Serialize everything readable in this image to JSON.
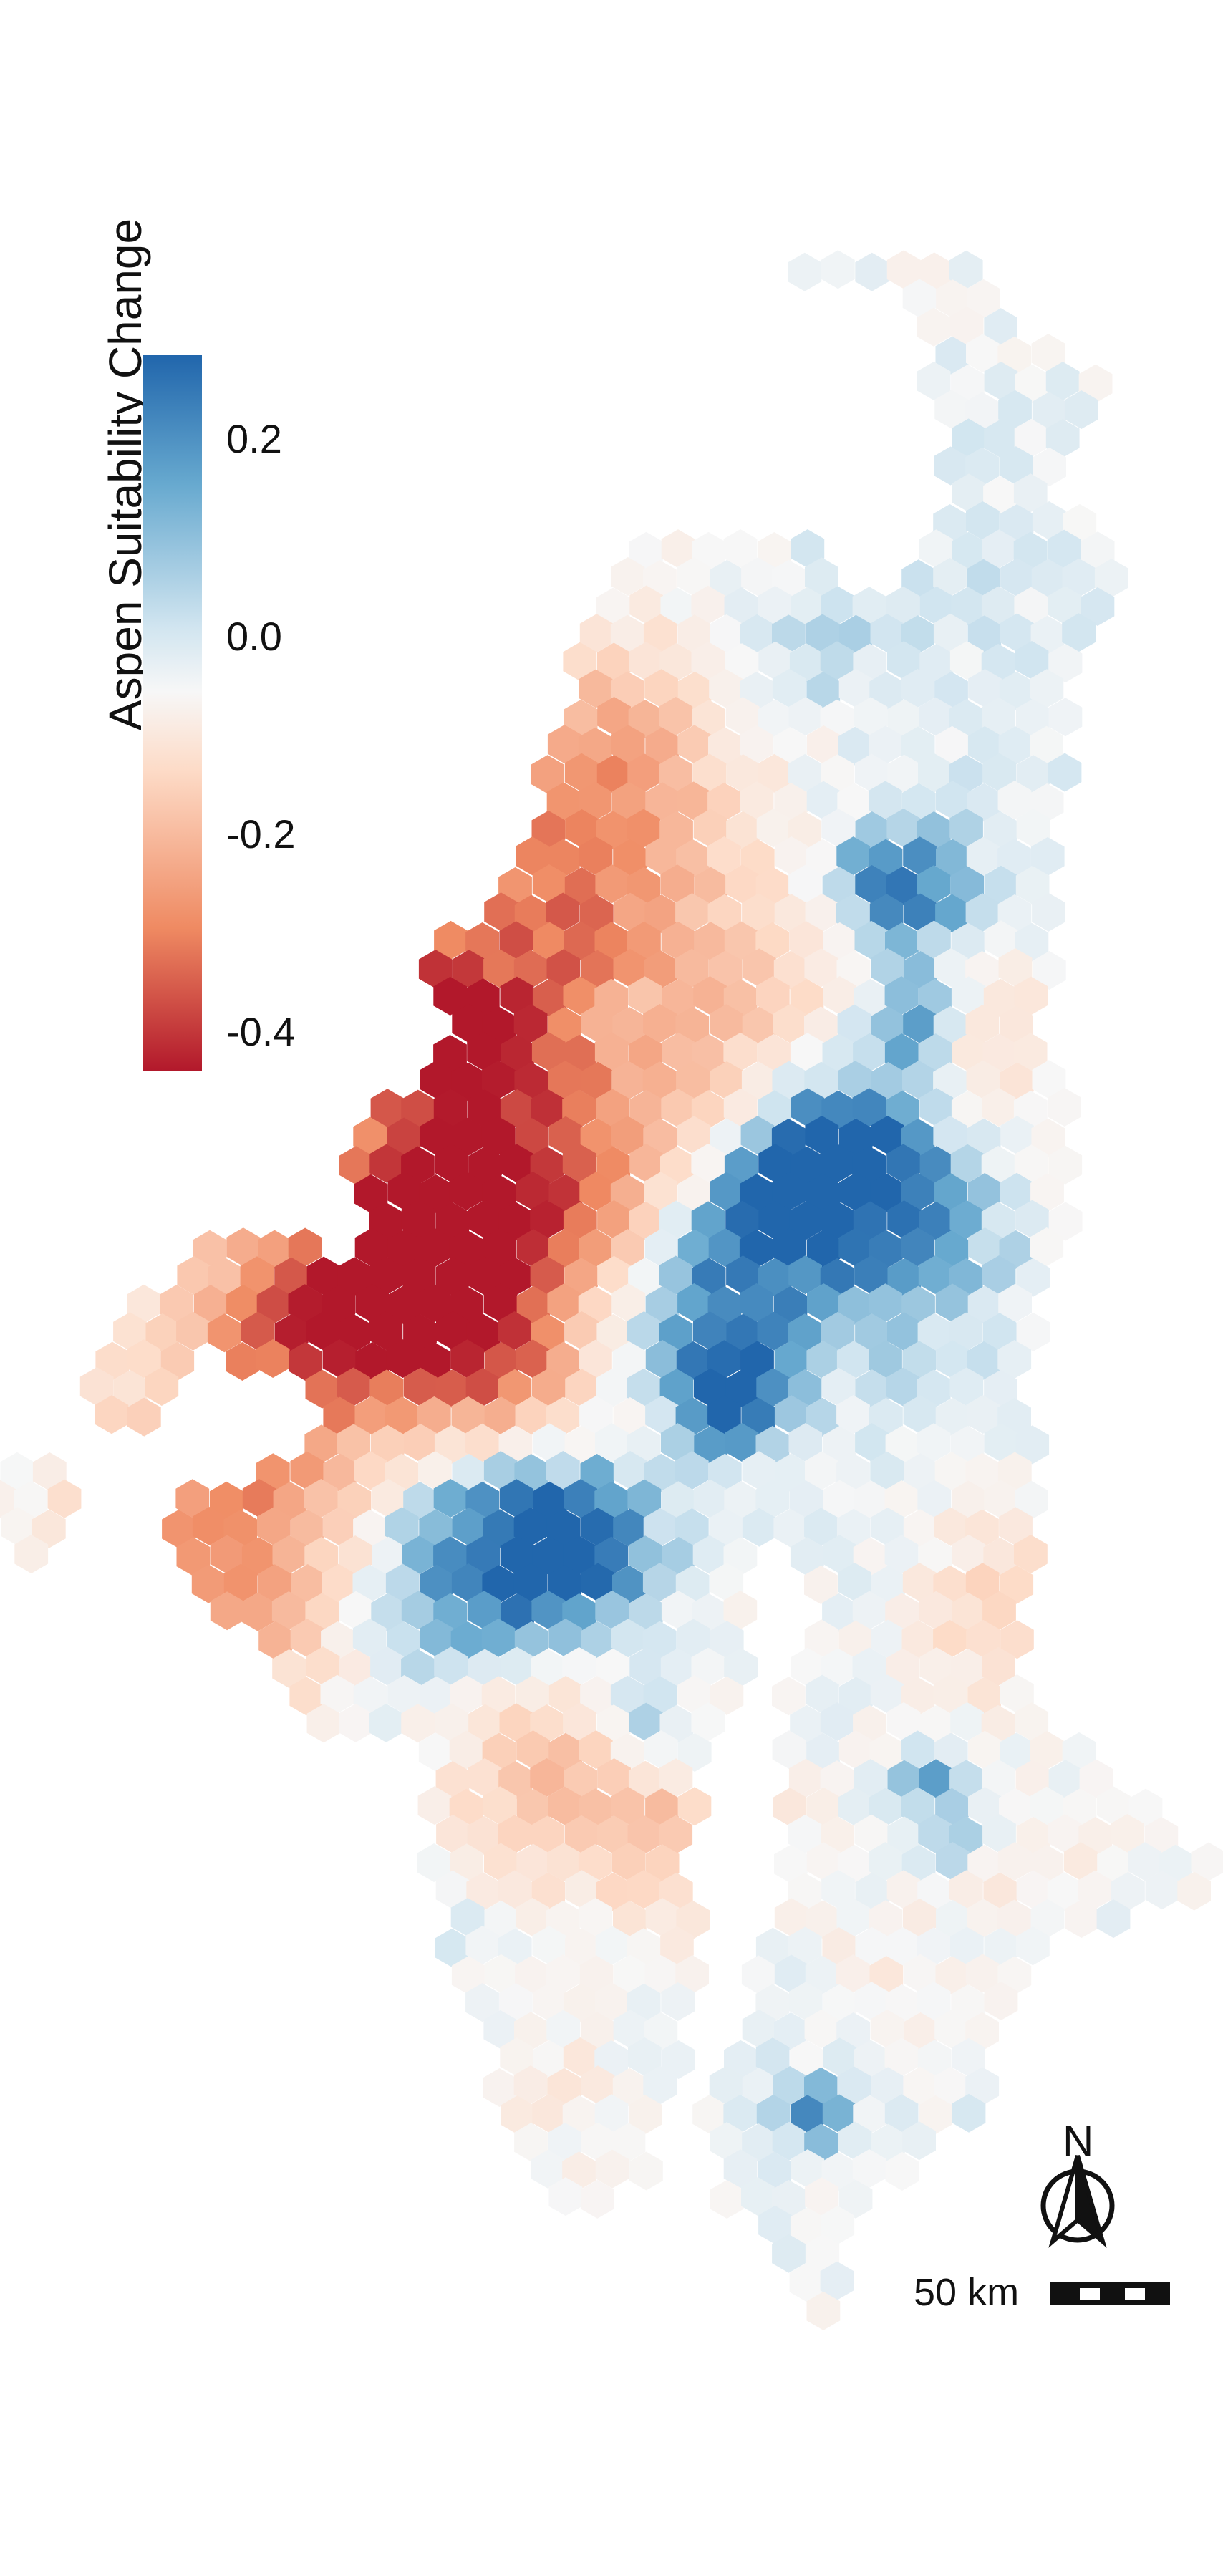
{
  "legend": {
    "title": "Aspen Suitability Change",
    "ticks": [
      {
        "label": "0.2",
        "value": 0.2
      },
      {
        "label": "0.0",
        "value": 0.0
      },
      {
        "label": "-0.2",
        "value": -0.2
      },
      {
        "label": "-0.4",
        "value": -0.4
      }
    ],
    "range": [
      -0.45,
      0.28
    ],
    "colors": [
      "#b2182b",
      "#ef8a62",
      "#fddbc7",
      "#f7f7f7",
      "#d1e5f0",
      "#67a9cf",
      "#2166ac"
    ]
  },
  "north_arrow": {
    "label": "N"
  },
  "scale_bar": {
    "label": "50 km"
  }
}
